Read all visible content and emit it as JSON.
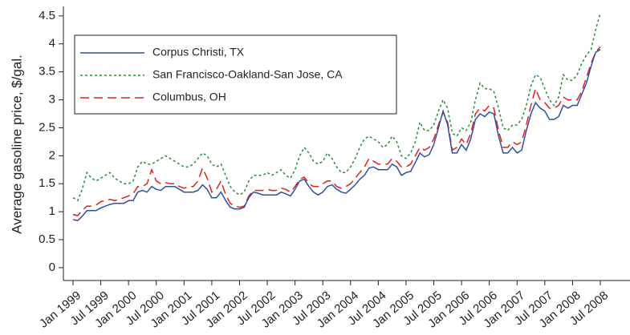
{
  "chart_data": {
    "type": "line",
    "y_label": "Average gasoline price, $/gal.",
    "categories": [
      "Jan 1999",
      null,
      null,
      null,
      null,
      null,
      "Jul 1999",
      null,
      null,
      null,
      null,
      null,
      "Jan 2000",
      null,
      null,
      null,
      null,
      null,
      "Jul 2000",
      null,
      null,
      null,
      null,
      null,
      "Jan 2001",
      null,
      null,
      null,
      null,
      null,
      "Jul 2001",
      null,
      null,
      null,
      null,
      null,
      "Jan 2002",
      null,
      null,
      null,
      null,
      null,
      "Jul 2002",
      null,
      null,
      null,
      null,
      null,
      "Jan 2003",
      null,
      null,
      null,
      null,
      null,
      "Jul 2003",
      null,
      null,
      null,
      null,
      null,
      "Jan 2004",
      null,
      null,
      null,
      null,
      null,
      "Jul 2004",
      null,
      null,
      null,
      null,
      null,
      "Jan 2005",
      null,
      null,
      null,
      null,
      null,
      "Jul 2005",
      null,
      null,
      null,
      null,
      null,
      "Jan 2006",
      null,
      null,
      null,
      null,
      null,
      "Jul 2006",
      null,
      null,
      null,
      null,
      null,
      "Jan 2007",
      null,
      null,
      null,
      null,
      null,
      "Jul 2007",
      null,
      null,
      null,
      null,
      null,
      "Jan 2008",
      null,
      null,
      null,
      null,
      null,
      "Jul 2008"
    ],
    "series": [
      {
        "name": "Corpus Christi, TX",
        "color": "#2f4fa0",
        "dash": "solid",
        "values": [
          0.86,
          0.84,
          0.92,
          1.02,
          1.02,
          1.02,
          1.07,
          1.1,
          1.13,
          1.15,
          1.15,
          1.15,
          1.2,
          1.2,
          1.35,
          1.38,
          1.35,
          1.45,
          1.4,
          1.38,
          1.45,
          1.45,
          1.45,
          1.4,
          1.35,
          1.35,
          1.35,
          1.38,
          1.48,
          1.4,
          1.25,
          1.25,
          1.35,
          1.2,
          1.08,
          1.05,
          1.05,
          1.08,
          1.25,
          1.35,
          1.33,
          1.3,
          1.3,
          1.3,
          1.3,
          1.35,
          1.32,
          1.28,
          1.4,
          1.55,
          1.58,
          1.45,
          1.35,
          1.3,
          1.35,
          1.45,
          1.48,
          1.4,
          1.35,
          1.33,
          1.4,
          1.48,
          1.58,
          1.65,
          1.78,
          1.8,
          1.75,
          1.75,
          1.75,
          1.85,
          1.8,
          1.65,
          1.7,
          1.72,
          1.88,
          2.05,
          1.98,
          2.02,
          2.2,
          2.5,
          2.8,
          2.55,
          2.05,
          2.05,
          2.2,
          2.1,
          2.3,
          2.65,
          2.75,
          2.7,
          2.78,
          2.75,
          2.35,
          2.05,
          2.05,
          2.15,
          2.05,
          2.1,
          2.45,
          2.75,
          2.95,
          2.85,
          2.8,
          2.65,
          2.65,
          2.7,
          2.9,
          2.85,
          2.9,
          2.9,
          3.1,
          3.3,
          3.6,
          3.85,
          3.9
        ]
      },
      {
        "name": "San Francisco-Oakland-San Jose, CA",
        "color": "#2a8a3a",
        "dash": "dotted",
        "values": [
          1.25,
          1.2,
          1.4,
          1.7,
          1.6,
          1.55,
          1.6,
          1.65,
          1.7,
          1.6,
          1.55,
          1.5,
          1.5,
          1.55,
          1.8,
          1.9,
          1.85,
          1.85,
          1.9,
          1.95,
          2.0,
          1.95,
          1.9,
          1.85,
          1.8,
          1.8,
          1.85,
          1.95,
          2.05,
          2.0,
          1.85,
          1.8,
          1.85,
          1.65,
          1.45,
          1.35,
          1.3,
          1.35,
          1.55,
          1.65,
          1.65,
          1.65,
          1.7,
          1.65,
          1.7,
          1.75,
          1.65,
          1.6,
          1.75,
          2.0,
          2.15,
          2.05,
          1.9,
          1.85,
          1.9,
          2.05,
          1.95,
          1.8,
          1.7,
          1.7,
          1.8,
          1.95,
          2.15,
          2.3,
          2.35,
          2.3,
          2.25,
          2.15,
          2.2,
          2.35,
          2.25,
          2.0,
          1.95,
          2.05,
          2.25,
          2.6,
          2.45,
          2.45,
          2.55,
          2.8,
          3.0,
          2.85,
          2.4,
          2.35,
          2.5,
          2.45,
          2.6,
          3.0,
          3.3,
          3.2,
          3.2,
          3.15,
          2.85,
          2.5,
          2.45,
          2.55,
          2.55,
          2.65,
          2.9,
          3.25,
          3.45,
          3.4,
          3.2,
          3.0,
          2.9,
          3.05,
          3.45,
          3.35,
          3.35,
          3.45,
          3.65,
          3.8,
          3.9,
          4.25,
          4.55
        ]
      },
      {
        "name": "Columbus, OH",
        "color": "#e0201c",
        "dash": "dashed",
        "values": [
          0.95,
          0.93,
          1.02,
          1.1,
          1.1,
          1.12,
          1.18,
          1.2,
          1.22,
          1.2,
          1.22,
          1.25,
          1.28,
          1.32,
          1.45,
          1.45,
          1.5,
          1.75,
          1.55,
          1.5,
          1.52,
          1.5,
          1.5,
          1.45,
          1.42,
          1.45,
          1.45,
          1.55,
          1.78,
          1.6,
          1.35,
          1.4,
          1.55,
          1.3,
          1.15,
          1.1,
          1.08,
          1.1,
          1.28,
          1.38,
          1.38,
          1.38,
          1.4,
          1.38,
          1.38,
          1.42,
          1.4,
          1.35,
          1.45,
          1.58,
          1.62,
          1.5,
          1.45,
          1.45,
          1.5,
          1.55,
          1.55,
          1.45,
          1.42,
          1.45,
          1.5,
          1.6,
          1.7,
          1.8,
          1.95,
          1.9,
          1.85,
          1.85,
          1.85,
          1.95,
          1.9,
          1.8,
          1.8,
          1.85,
          2.0,
          2.15,
          2.1,
          2.15,
          2.3,
          2.55,
          2.78,
          2.6,
          2.1,
          2.15,
          2.3,
          2.2,
          2.4,
          2.75,
          2.85,
          2.8,
          2.9,
          2.85,
          2.45,
          2.15,
          2.15,
          2.25,
          2.2,
          2.25,
          2.55,
          2.9,
          3.2,
          3.0,
          2.95,
          2.85,
          2.85,
          2.9,
          3.05,
          3.0,
          3.0,
          3.0,
          3.15,
          3.4,
          3.65,
          3.85,
          3.95
        ]
      }
    ],
    "ylim": [
      -0.23,
      4.67
    ],
    "yticks": [
      0,
      0.5,
      1,
      1.5,
      2,
      2.5,
      3,
      3.5,
      4,
      4.5
    ],
    "legend": "upper left",
    "grid": false
  }
}
